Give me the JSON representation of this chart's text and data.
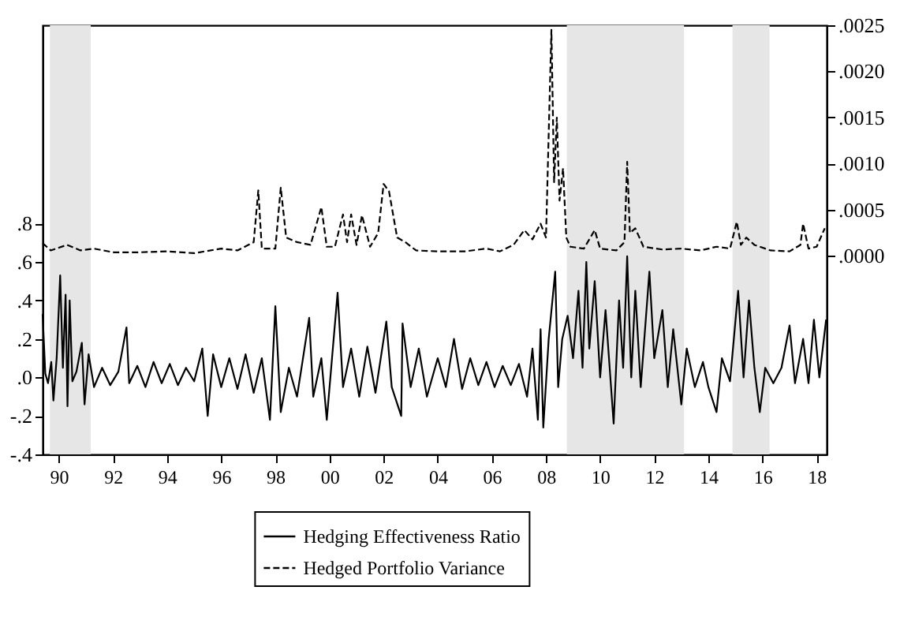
{
  "chart_data": {
    "type": "line",
    "xlim": [
      1989.4,
      2018.37
    ],
    "xticks": [
      {
        "value": 1990,
        "label": "90"
      },
      {
        "value": 1992,
        "label": "92"
      },
      {
        "value": 1994,
        "label": "94"
      },
      {
        "value": 1996,
        "label": "96"
      },
      {
        "value": 1998,
        "label": "98"
      },
      {
        "value": 2000,
        "label": "00"
      },
      {
        "value": 2002,
        "label": "02"
      },
      {
        "value": 2004,
        "label": "04"
      },
      {
        "value": 2006,
        "label": "06"
      },
      {
        "value": 2008,
        "label": "08"
      },
      {
        "value": 2010,
        "label": "10"
      },
      {
        "value": 2012,
        "label": "12"
      },
      {
        "value": 2014,
        "label": "14"
      },
      {
        "value": 2016,
        "label": "16"
      },
      {
        "value": 2018,
        "label": "18"
      }
    ],
    "ylim": [
      -0.4,
      1.83
    ],
    "yticks": [
      {
        "value": -0.4,
        "label": "-.4"
      },
      {
        "value": -0.2,
        "label": "-.2"
      },
      {
        "value": 0,
        "label": ".0"
      },
      {
        "value": 0.2,
        "label": ".2"
      },
      {
        "value": 0.4,
        "label": ".4"
      },
      {
        "value": 0.6,
        "label": ".6"
      },
      {
        "value": 0.8,
        "label": ".8"
      }
    ],
    "y2lim": [
      -0.00215,
      0.0025
    ],
    "y2ticks": [
      {
        "value": 0,
        "label": ".0000"
      },
      {
        "value": 0.0005,
        "label": ".0005"
      },
      {
        "value": 0.001,
        "label": ".0010"
      },
      {
        "value": 0.0015,
        "label": ".0015"
      },
      {
        "value": 0.002,
        "label": ".0020"
      },
      {
        "value": 0.0025,
        "label": ".0025"
      }
    ],
    "grid": false,
    "legend": "bottom",
    "bands": [
      {
        "axis": "x",
        "from": 1989.67,
        "to": 1991.18,
        "color": "#e6e6e6"
      },
      {
        "axis": "x",
        "from": 2008.77,
        "to": 2013.1,
        "color": "#e6e6e6"
      },
      {
        "axis": "x",
        "from": 2014.89,
        "to": 2016.26,
        "color": "#e6e6e6"
      }
    ],
    "series": [
      {
        "name": "Hedging Effectiveness Ratio",
        "color": "#000000",
        "line_style": "solid",
        "x": [
          1989.4,
          1989.5,
          1989.6,
          1989.72,
          1989.8,
          1989.92,
          1990.05,
          1990.15,
          1990.25,
          1990.32,
          1990.4,
          1990.5,
          1990.65,
          1990.85,
          1990.95,
          1991.1,
          1991.3,
          1991.6,
          1991.9,
          1992.2,
          1992.5,
          1992.6,
          1992.9,
          1993.2,
          1993.5,
          1993.8,
          1994.1,
          1994.4,
          1994.7,
          1995.0,
          1995.3,
          1995.5,
          1995.7,
          1996.0,
          1996.3,
          1996.6,
          1996.9,
          1997.2,
          1997.5,
          1997.8,
          1998.0,
          1998.2,
          1998.5,
          1998.8,
          1999.0,
          1999.25,
          1999.4,
          1999.7,
          1999.9,
          2000.3,
          2000.5,
          2000.8,
          2001.1,
          2001.4,
          2001.7,
          2002.1,
          2002.3,
          2002.65,
          2002.7,
          2003.0,
          2003.3,
          2003.6,
          2004.0,
          2004.3,
          2004.6,
          2004.9,
          2005.2,
          2005.5,
          2005.8,
          2006.1,
          2006.4,
          2006.7,
          2007.0,
          2007.3,
          2007.5,
          2007.7,
          2007.8,
          2007.9,
          2008.1,
          2008.34,
          2008.45,
          2008.6,
          2008.8,
          2009.0,
          2009.2,
          2009.35,
          2009.49,
          2009.6,
          2009.8,
          2010.0,
          2010.2,
          2010.5,
          2010.7,
          2010.85,
          2011.0,
          2011.15,
          2011.3,
          2011.5,
          2011.82,
          2012.0,
          2012.3,
          2012.5,
          2012.7,
          2013.0,
          2013.2,
          2013.5,
          2013.8,
          2014.0,
          2014.3,
          2014.5,
          2014.8,
          2015.1,
          2015.3,
          2015.5,
          2015.7,
          2015.9,
          2016.1,
          2016.4,
          2016.7,
          2017.0,
          2017.2,
          2017.5,
          2017.7,
          2017.9,
          2018.1,
          2018.35
        ],
        "values": [
          0.33,
          0.02,
          -0.03,
          0.08,
          -0.12,
          0.1,
          0.53,
          0.05,
          0.43,
          -0.15,
          0.4,
          -0.02,
          0.03,
          0.18,
          -0.14,
          0.12,
          -0.05,
          0.05,
          -0.04,
          0.03,
          0.26,
          -0.03,
          0.06,
          -0.05,
          0.08,
          -0.03,
          0.07,
          -0.04,
          0.05,
          -0.02,
          0.15,
          -0.2,
          0.12,
          -0.05,
          0.1,
          -0.06,
          0.12,
          -0.08,
          0.1,
          -0.22,
          0.37,
          -0.18,
          0.05,
          -0.1,
          0.08,
          0.31,
          -0.1,
          0.1,
          -0.22,
          0.44,
          -0.05,
          0.15,
          -0.1,
          0.16,
          -0.08,
          0.29,
          -0.05,
          -0.2,
          0.28,
          -0.05,
          0.15,
          -0.1,
          0.1,
          -0.05,
          0.2,
          -0.06,
          0.1,
          -0.04,
          0.08,
          -0.05,
          0.06,
          -0.04,
          0.07,
          -0.1,
          0.15,
          -0.22,
          0.25,
          -0.26,
          0.2,
          0.55,
          -0.05,
          0.2,
          0.32,
          0.1,
          0.45,
          0.05,
          0.6,
          0.15,
          0.5,
          0.0,
          0.35,
          -0.24,
          0.4,
          0.05,
          0.63,
          0.0,
          0.45,
          -0.05,
          0.55,
          0.1,
          0.35,
          -0.05,
          0.25,
          -0.14,
          0.15,
          -0.05,
          0.08,
          -0.05,
          -0.18,
          0.1,
          -0.02,
          0.45,
          0.0,
          0.4,
          0.05,
          -0.18,
          0.05,
          -0.03,
          0.05,
          0.27,
          -0.03,
          0.2,
          -0.03,
          0.3,
          0.0,
          0.3
        ]
      },
      {
        "name": "Hedged Portfolio Variance",
        "color": "#000000",
        "line_style": "dashed",
        "axis": "y2",
        "x": [
          1989.4,
          1989.7,
          1990.3,
          1990.8,
          1991.3,
          1992.0,
          1993.0,
          1994.0,
          1995.0,
          1996.0,
          1996.6,
          1997.2,
          1997.37,
          1997.5,
          1998.0,
          1998.2,
          1998.4,
          1998.8,
          1999.3,
          1999.7,
          1999.9,
          2000.2,
          2000.5,
          2000.65,
          2000.8,
          2001.0,
          2001.2,
          2001.5,
          2001.8,
          2002.0,
          2002.2,
          2002.5,
          2002.8,
          2003.2,
          2004.0,
          2005.0,
          2005.8,
          2006.3,
          2006.8,
          2007.2,
          2007.5,
          2007.8,
          2008.0,
          2008.2,
          2008.3,
          2008.4,
          2008.5,
          2008.63,
          2008.75,
          2008.9,
          2009.4,
          2009.8,
          2010.0,
          2010.6,
          2010.9,
          2011.0,
          2011.1,
          2011.3,
          2011.6,
          2012.3,
          2013.0,
          2013.7,
          2014.3,
          2014.8,
          2015.05,
          2015.2,
          2015.4,
          2015.7,
          2016.3,
          2017.0,
          2017.4,
          2017.5,
          2017.7,
          2018.0,
          2018.3
        ],
        "values": [
          0.00014,
          6e-05,
          0.00012,
          6e-05,
          8e-05,
          4e-05,
          4e-05,
          5e-05,
          3e-05,
          8e-05,
          6e-05,
          0.00015,
          0.00071,
          8e-05,
          8e-05,
          0.00074,
          0.0002,
          0.00015,
          0.00012,
          0.00053,
          0.0001,
          0.0001,
          0.00045,
          0.00015,
          0.00045,
          0.00012,
          0.00044,
          0.0001,
          0.00025,
          0.00078,
          0.0007,
          0.0002,
          0.00015,
          6e-05,
          5e-05,
          5e-05,
          8e-05,
          5e-05,
          0.00012,
          0.00028,
          0.00018,
          0.00035,
          0.0002,
          0.00245,
          0.0008,
          0.0015,
          0.0006,
          0.00095,
          0.0002,
          0.0001,
          8e-05,
          0.00028,
          8e-05,
          6e-05,
          0.00015,
          0.00102,
          0.00025,
          0.0003,
          0.0001,
          7e-05,
          8e-05,
          6e-05,
          0.0001,
          8e-05,
          0.00037,
          0.00012,
          0.0002,
          0.00012,
          6e-05,
          5e-05,
          0.00012,
          0.00035,
          8e-05,
          0.0001,
          0.0003
        ]
      }
    ]
  }
}
